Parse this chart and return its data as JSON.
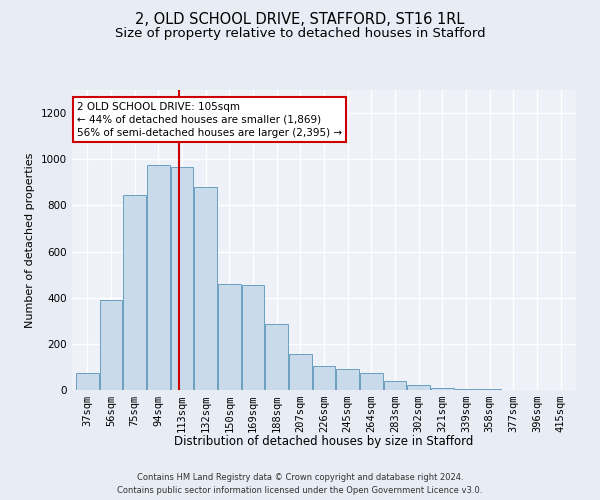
{
  "title_line1": "2, OLD SCHOOL DRIVE, STAFFORD, ST16 1RL",
  "title_line2": "Size of property relative to detached houses in Stafford",
  "xlabel": "Distribution of detached houses by size in Stafford",
  "ylabel": "Number of detached properties",
  "footnote": "Contains HM Land Registry data © Crown copyright and database right 2024.\nContains public sector information licensed under the Open Government Licence v3.0.",
  "bar_labels": [
    "37sqm",
    "56sqm",
    "75sqm",
    "94sqm",
    "113sqm",
    "132sqm",
    "150sqm",
    "169sqm",
    "188sqm",
    "207sqm",
    "226sqm",
    "245sqm",
    "264sqm",
    "283sqm",
    "302sqm",
    "321sqm",
    "339sqm",
    "358sqm",
    "377sqm",
    "396sqm",
    "415sqm"
  ],
  "bar_values": [
    75,
    390,
    845,
    975,
    965,
    880,
    460,
    455,
    285,
    155,
    105,
    90,
    75,
    40,
    20,
    8,
    5,
    3,
    2,
    1,
    2
  ],
  "bar_color": "#c9daea",
  "bar_edge_color": "#6a9fc0",
  "vline_x": 4,
  "vline_color": "#cc0000",
  "annotation_text": "2 OLD SCHOOL DRIVE: 105sqm\n← 44% of detached houses are smaller (1,869)\n56% of semi-detached houses are larger (2,395) →",
  "annotation_box_facecolor": "white",
  "annotation_box_edgecolor": "#cc0000",
  "ylim": [
    0,
    1300
  ],
  "yticks": [
    0,
    200,
    400,
    600,
    800,
    1000,
    1200
  ],
  "bg_color": "#e8ecf4",
  "plot_bg_color": "#eef2f8",
  "title_fontsize": 10.5,
  "subtitle_fontsize": 9.5,
  "axis_label_fontsize": 8.5,
  "ylabel_fontsize": 8,
  "tick_fontsize": 7.5,
  "footnote_fontsize": 6.0
}
